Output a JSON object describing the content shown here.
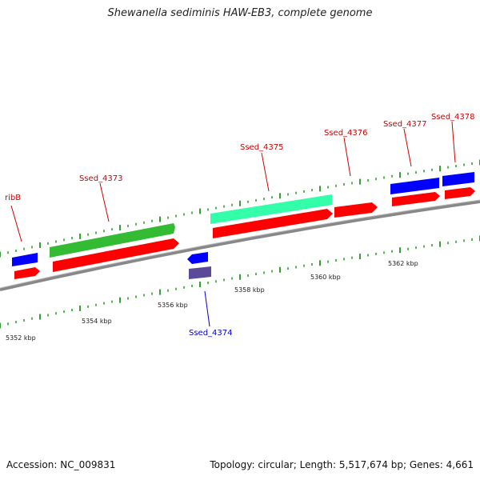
{
  "title": "Shewanella sediminis HAW-EB3, complete genome",
  "accession": "Accession: NC_009831",
  "summary": "Topology: circular; Length: 5,517,674 bp; Genes: 4,661",
  "colors": {
    "gene_plus": "#ff0000",
    "gene_minus": "#0000ff",
    "cds_green": "#33bb33",
    "cds_cyan": "#33ffaa",
    "purple": "#5a4a99",
    "label_plus": "#cc0000",
    "label_minus": "#0000cc",
    "backbone": "#888888",
    "ticks": "#008800"
  },
  "ruler_labels": [
    "5352 kbp",
    "5354 kbp",
    "5356 kbp",
    "5358 kbp",
    "5360 kbp",
    "5362 kbp"
  ],
  "gene_labels": [
    {
      "text": "ribB",
      "strand": "plus"
    },
    {
      "text": "Ssed_4373",
      "strand": "plus"
    },
    {
      "text": "Ssed_4374",
      "strand": "minus"
    },
    {
      "text": "Ssed_4375",
      "strand": "plus"
    },
    {
      "text": "Ssed_4376",
      "strand": "plus"
    },
    {
      "text": "Ssed_4377",
      "strand": "plus"
    },
    {
      "text": "Ssed_4378",
      "strand": "plus"
    }
  ]
}
